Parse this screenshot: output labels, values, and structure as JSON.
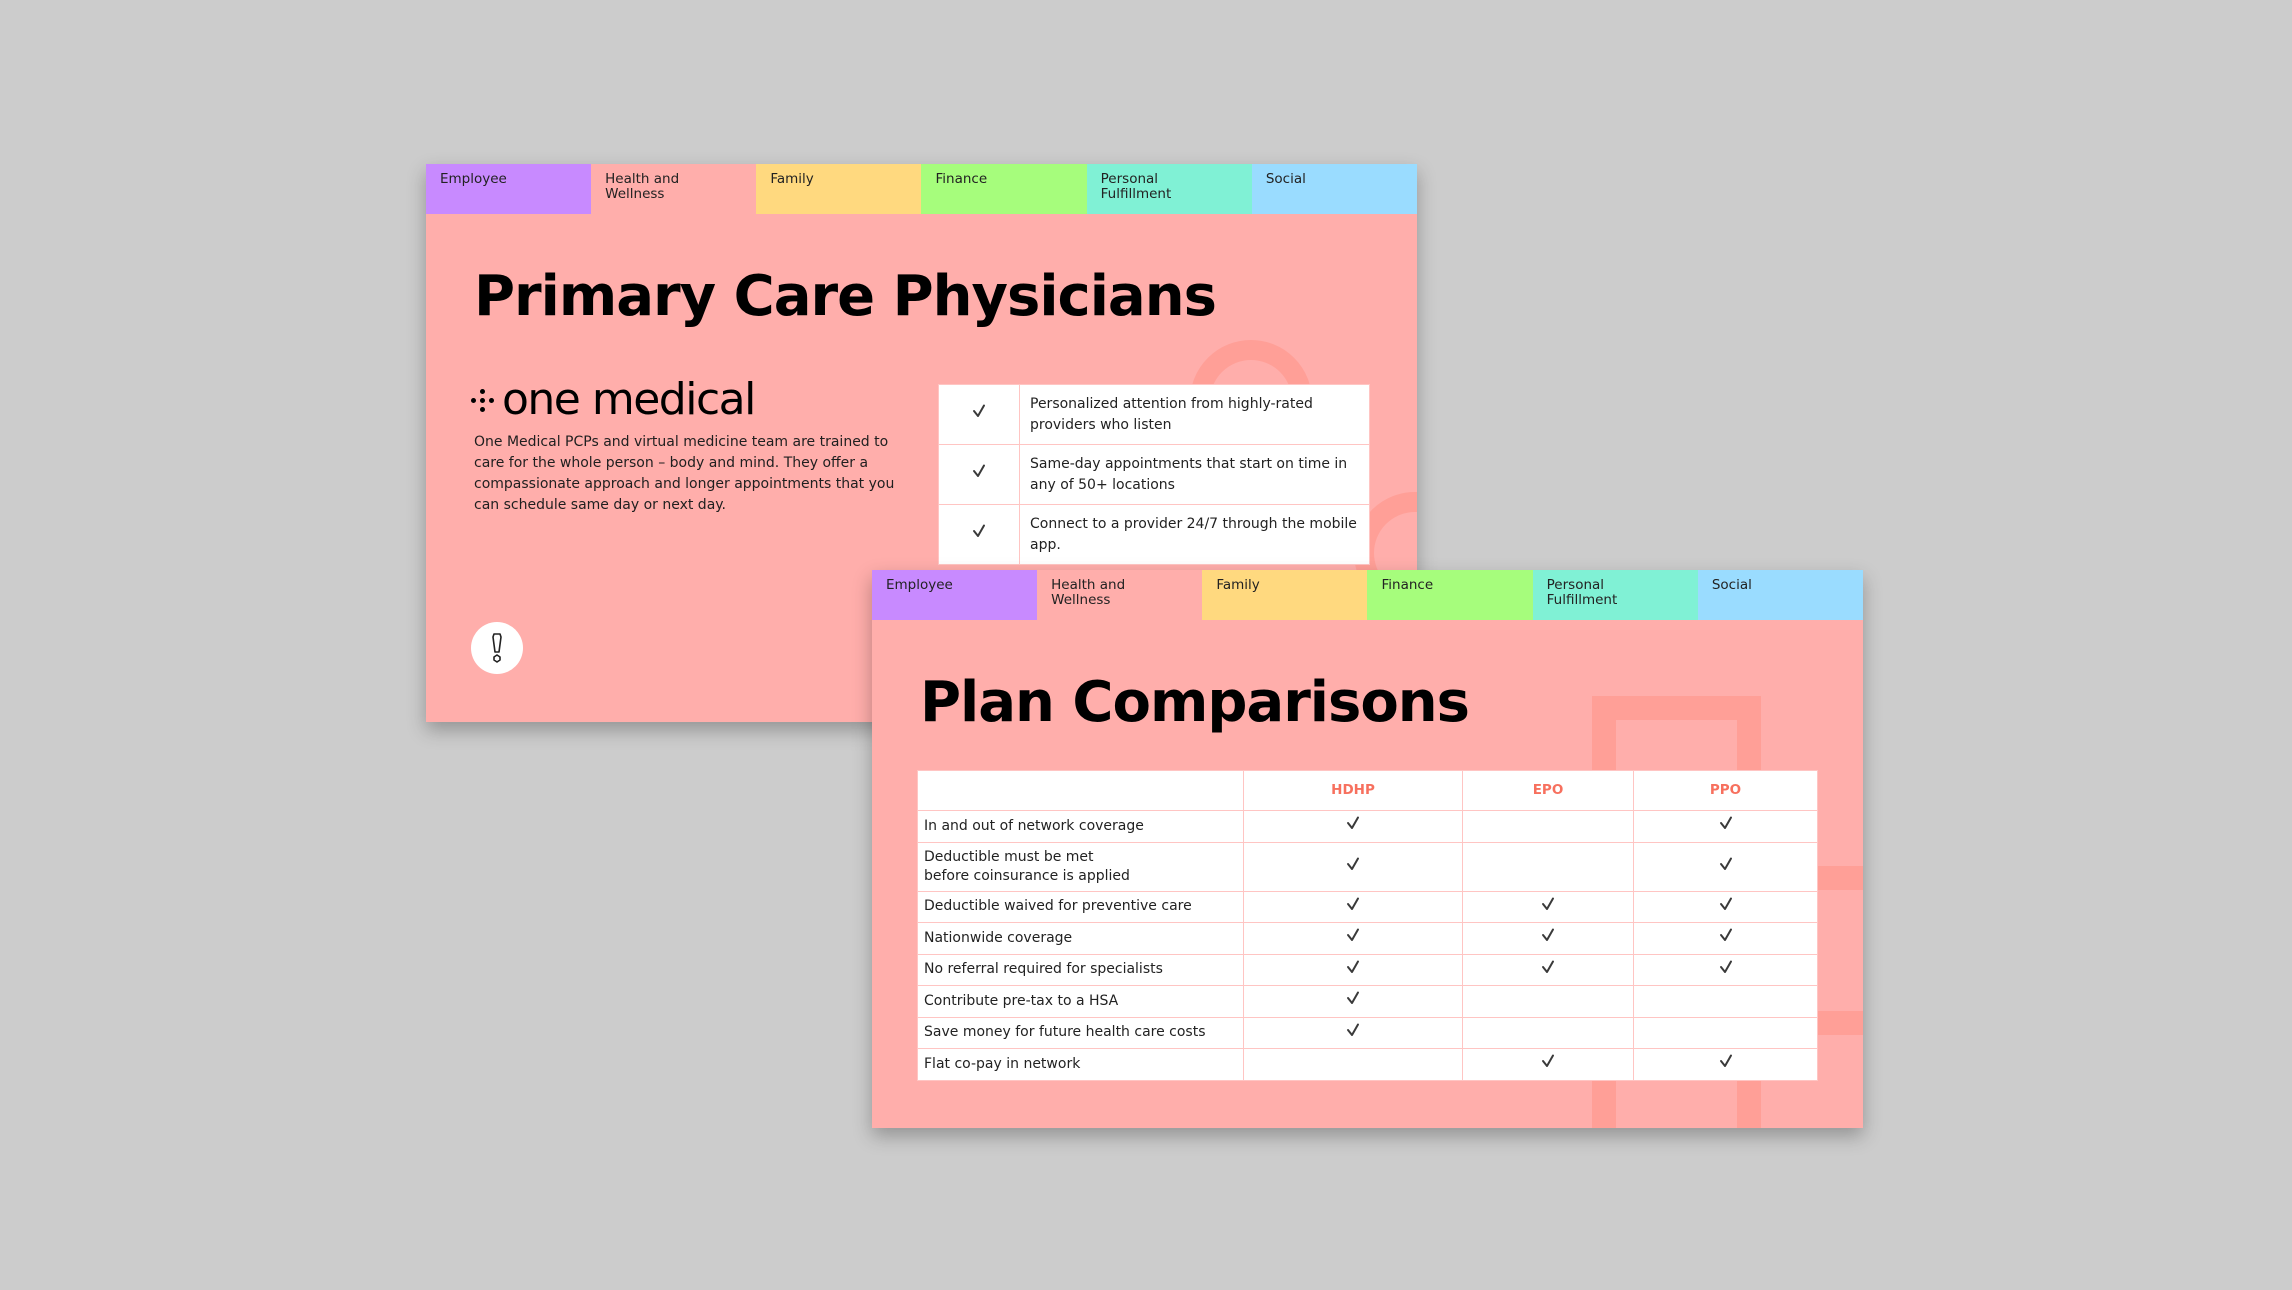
{
  "theme": {
    "background": "#cccccc",
    "slide_bg": "#ffaeab",
    "deco_color": "#ff9f97",
    "accent_header": "#f7705e",
    "table_border": "#ffc5c3",
    "check_color": "#3a3a3a"
  },
  "tabs": [
    {
      "label": "Employee",
      "color": "#c88aff"
    },
    {
      "label": "Health and Wellness",
      "color": "#ffaeab",
      "active": true
    },
    {
      "label": "Family",
      "color": "#ffd97f"
    },
    {
      "label": "Finance",
      "color": "#a6fd7c"
    },
    {
      "label": "Personal Fulfillment",
      "color": "#80f1d5"
    },
    {
      "label": "Social",
      "color": "#9adcff"
    }
  ],
  "slide1": {
    "title": "Primary Care Physicians",
    "logo_text": "one medical",
    "description": "One Medical PCPs and virtual medicine team are trained to care for the whole person – body and mind. They offer a compassionate approach and longer appointments that you can schedule same day or next day.",
    "alert_icon": "exclamation-icon",
    "benefits": [
      {
        "checked": true,
        "text": "Personalized attention from highly-rated providers who listen"
      },
      {
        "checked": true,
        "text": "Same-day appointments that start on time in any of  50+ locations"
      },
      {
        "checked": true,
        "text": "Connect to a provider 24/7 through the mobile app."
      }
    ]
  },
  "slide2": {
    "title": "Plan Comparisons",
    "columns": [
      "",
      "HDHP",
      "EPO",
      "PPO"
    ],
    "rows": [
      {
        "label": "In and out of network coverage",
        "hdhp": true,
        "epo": false,
        "ppo": true
      },
      {
        "label": "Deductible must be met before coinsurance is applied",
        "hdhp": true,
        "epo": false,
        "ppo": true
      },
      {
        "label": "Deductible waived for preventive care",
        "hdhp": true,
        "epo": true,
        "ppo": true
      },
      {
        "label": "Nationwide coverage",
        "hdhp": true,
        "epo": true,
        "ppo": true
      },
      {
        "label": "No referral required for specialists",
        "hdhp": true,
        "epo": true,
        "ppo": true
      },
      {
        "label": "Contribute pre-tax to a HSA",
        "hdhp": true,
        "epo": false,
        "ppo": false
      },
      {
        "label": "Save money for future health care costs",
        "hdhp": true,
        "epo": false,
        "ppo": false
      },
      {
        "label": "Flat co-pay in network",
        "hdhp": false,
        "epo": true,
        "ppo": true
      }
    ]
  }
}
